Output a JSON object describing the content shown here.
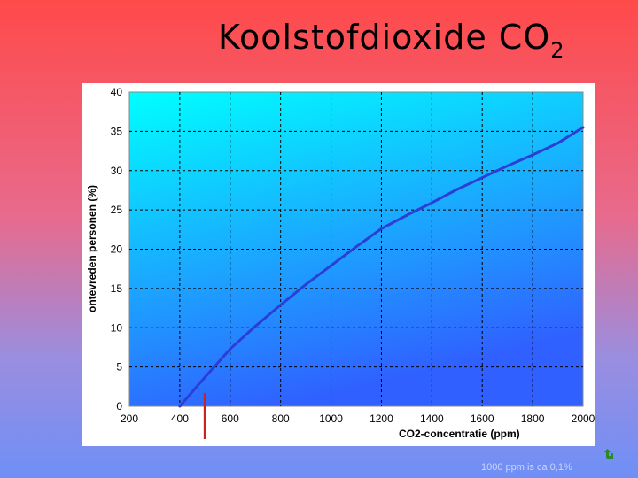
{
  "slide": {
    "title_main": "Koolstofdioxide CO",
    "title_subscript": "2",
    "footnote": "1000 ppm is ca 0,1%",
    "corner_icon": "return-arrow-icon"
  },
  "chart_data": {
    "type": "line",
    "xlabel": "CO2-concentratie (ppm)",
    "ylabel": "ontevreden personen (%)",
    "xlim": [
      200,
      2000
    ],
    "ylim": [
      0,
      40
    ],
    "x_ticks": [
      200,
      400,
      600,
      800,
      1000,
      1200,
      1400,
      1600,
      1800,
      2000
    ],
    "x_tick_labels": [
      "200",
      "400",
      "600",
      "800",
      "1000",
      "1200",
      "1400",
      "1600",
      "1800",
      "2000"
    ],
    "y_ticks": [
      0,
      5,
      10,
      15,
      20,
      25,
      30,
      35,
      40
    ],
    "y_tick_labels": [
      "0",
      "5",
      "10",
      "15",
      "20",
      "25",
      "30",
      "35",
      "40"
    ],
    "grid": true,
    "series": [
      {
        "color": "#2b3fd6",
        "x": [
          400,
          500,
          600,
          700,
          800,
          900,
          1000,
          1100,
          1200,
          1300,
          1400,
          1500,
          1600,
          1700,
          1800,
          1900,
          2000
        ],
        "y": [
          0,
          3.7,
          7.3,
          10.2,
          12.9,
          15.5,
          17.9,
          20.3,
          22.6,
          24.3,
          25.9,
          27.6,
          29.1,
          30.6,
          32.0,
          33.5,
          35.5
        ]
      }
    ],
    "marker": {
      "x": 500,
      "color": "#cc2222"
    },
    "colors": {
      "plot_top": "#00ffff",
      "plot_bottom": "#3060ff",
      "grid": "#000000",
      "frame": "#ffffff"
    }
  }
}
